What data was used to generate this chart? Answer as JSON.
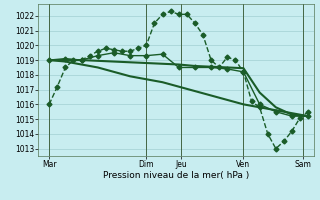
{
  "background_color": "#c8edf0",
  "grid_color": "#a8d4d8",
  "line_color": "#1a5c28",
  "title": "Pression niveau de la mer( hPa )",
  "ylim": [
    1012.5,
    1022.8
  ],
  "yticks": [
    1013,
    1014,
    1015,
    1016,
    1017,
    1018,
    1019,
    1020,
    1021,
    1022
  ],
  "xlim": [
    0,
    204
  ],
  "xtick_labels": [
    "Mar",
    "Dim",
    "Jeu",
    "Ven",
    "Sam"
  ],
  "xtick_positions": [
    8,
    80,
    106,
    152,
    196
  ],
  "vlines": [
    8,
    80,
    106,
    152,
    196
  ],
  "series": [
    {
      "x": [
        8,
        14,
        20,
        26,
        32,
        38,
        44,
        50,
        56,
        62,
        68,
        74,
        80,
        86,
        92,
        98,
        104,
        110,
        116,
        122,
        128,
        134,
        140,
        146,
        152,
        158,
        164,
        170,
        176,
        182,
        188,
        194,
        200
      ],
      "y": [
        1016.0,
        1017.2,
        1018.5,
        1019.0,
        1019.0,
        1019.3,
        1019.6,
        1019.8,
        1019.7,
        1019.6,
        1019.6,
        1019.8,
        1020.0,
        1021.5,
        1022.1,
        1022.3,
        1022.1,
        1022.1,
        1021.5,
        1020.7,
        1019.0,
        1018.5,
        1019.2,
        1019.0,
        1018.2,
        1016.2,
        1015.8,
        1014.0,
        1013.0,
        1013.5,
        1014.2,
        1015.1,
        1015.5
      ],
      "marker": "D",
      "markersize": 2.5,
      "linewidth": 1.0,
      "linestyle": "--"
    },
    {
      "x": [
        8,
        20,
        32,
        44,
        56,
        68,
        80,
        92,
        104,
        116,
        128,
        140,
        152,
        164,
        176,
        188,
        200
      ],
      "y": [
        1019.0,
        1019.0,
        1019.0,
        1018.95,
        1018.9,
        1018.85,
        1018.8,
        1018.75,
        1018.7,
        1018.6,
        1018.55,
        1018.5,
        1018.45,
        1016.8,
        1015.8,
        1015.3,
        1015.2
      ],
      "marker": null,
      "markersize": 0,
      "linewidth": 1.5,
      "linestyle": "-"
    },
    {
      "x": [
        8,
        20,
        32,
        44,
        56,
        68,
        80,
        92,
        104,
        116,
        128,
        140,
        152,
        164,
        176,
        188,
        200
      ],
      "y": [
        1019.0,
        1018.9,
        1018.7,
        1018.5,
        1018.2,
        1017.9,
        1017.7,
        1017.5,
        1017.2,
        1016.9,
        1016.6,
        1016.3,
        1016.0,
        1015.8,
        1015.6,
        1015.4,
        1015.2
      ],
      "marker": null,
      "markersize": 0,
      "linewidth": 1.5,
      "linestyle": "-"
    },
    {
      "x": [
        8,
        20,
        32,
        44,
        56,
        68,
        80,
        92,
        104,
        116,
        128,
        140,
        152,
        164,
        176,
        188,
        200
      ],
      "y": [
        1019.0,
        1019.1,
        1019.0,
        1019.3,
        1019.5,
        1019.3,
        1019.3,
        1019.4,
        1018.5,
        1018.5,
        1018.5,
        1018.4,
        1018.2,
        1016.0,
        1015.5,
        1015.2,
        1015.2
      ],
      "marker": "D",
      "markersize": 2.5,
      "linewidth": 1.0,
      "linestyle": "-"
    }
  ]
}
